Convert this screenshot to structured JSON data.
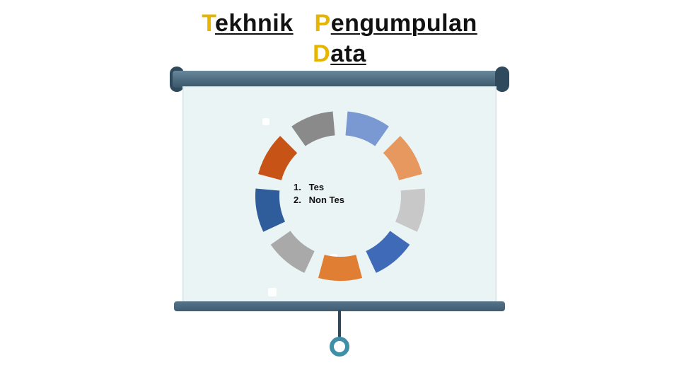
{
  "title": {
    "words": [
      {
        "cap": "T",
        "rest": "ekhnik"
      },
      {
        "cap": "P",
        "rest": "engumpulan"
      },
      {
        "cap": "D",
        "rest": "ata"
      }
    ],
    "cap_color": "#e6b500",
    "text_color": "#111111",
    "fontsize_pt": 26,
    "underline": true
  },
  "projector": {
    "roller_color": "#4f6e82",
    "roller_cap_color": "#2f4a5c",
    "screen_bg": "#eaf4f5",
    "bottom_bar_color": "#3f5c72",
    "ring_color": "#3f8fa8"
  },
  "donut": {
    "type": "segmented-ring",
    "outer_radius": 120,
    "inner_radius": 86,
    "gap_deg": 10,
    "background": "#eaf4f5",
    "segments": [
      {
        "color": "#7a98d1"
      },
      {
        "color": "#e6985f"
      },
      {
        "color": "#c8c8c8"
      },
      {
        "color": "#3f6ab8"
      },
      {
        "color": "#e07f33"
      },
      {
        "color": "#a9a9a9"
      },
      {
        "color": "#2f5c9a"
      },
      {
        "color": "#c75416"
      },
      {
        "color": "#8a8a8a"
      }
    ]
  },
  "center_list": {
    "items": [
      {
        "n": "1.",
        "label": "Tes"
      },
      {
        "n": "2.",
        "label": "Non Tes"
      }
    ],
    "fontsize_pt": 10,
    "color": "#111111",
    "weight": "700"
  }
}
